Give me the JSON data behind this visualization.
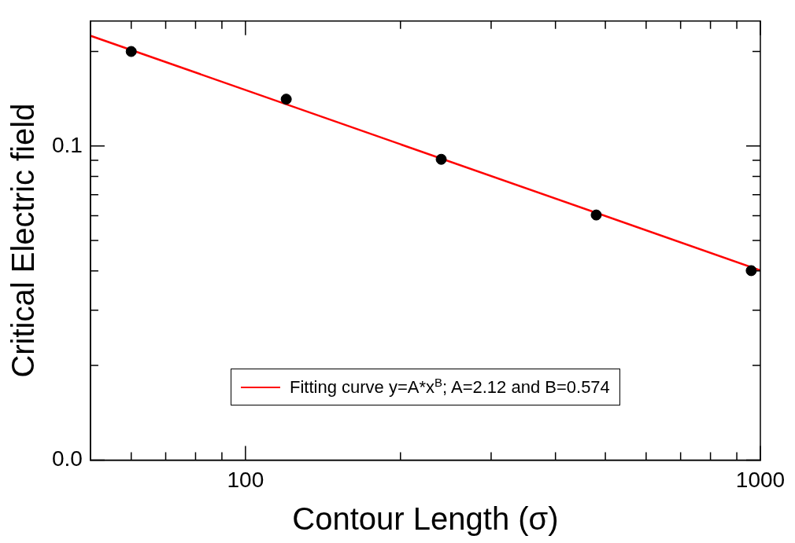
{
  "chart_data": {
    "type": "scatter",
    "xlabel": "Contour Length (σ)",
    "ylabel": "Critical Electric field",
    "x": [
      60,
      120,
      240,
      480,
      960
    ],
    "series": [
      {
        "color": "#000000",
        "values": [
          0.2,
          0.141,
          0.0907,
          0.0603,
          0.0401
        ]
      },
      {
        "type": "line",
        "name": "Fitting curve y=A*x$^{B}$; A=2.12 and B=0.574",
        "color": "#ff0000",
        "x": [
          50,
          1000
        ],
        "values": [
          0.2245,
          0.0402
        ],
        "marker": "none"
      }
    ],
    "log": "xy",
    "xlim": [
      50,
      1000
    ],
    "ylim": [
      0.01,
      0.25
    ],
    "xticks": [
      {
        "value": 60,
        "label": null
      },
      {
        "value": 70,
        "label": null
      },
      {
        "value": 80,
        "label": null
      },
      {
        "value": 90,
        "label": null
      },
      100,
      {
        "value": 200,
        "label": null
      },
      {
        "value": 300,
        "label": null
      },
      {
        "value": 400,
        "label": null
      },
      {
        "value": 500,
        "label": null
      },
      {
        "value": 600,
        "label": null
      },
      {
        "value": 700,
        "label": null
      },
      {
        "value": 800,
        "label": null
      },
      {
        "value": 900,
        "label": null
      },
      1000
    ],
    "yticks": [
      {
        "value": 0.01,
        "label": "0.0"
      },
      {
        "value": 0.02,
        "label": null
      },
      {
        "value": 0.03,
        "label": null
      },
      {
        "value": 0.04,
        "label": null
      },
      {
        "value": 0.05,
        "label": null
      },
      {
        "value": 0.06,
        "label": null
      },
      {
        "value": 0.07,
        "label": null
      },
      {
        "value": 0.08,
        "label": null
      },
      {
        "value": 0.09,
        "label": null
      },
      0.1,
      {
        "value": 0.2,
        "label": null
      }
    ],
    "marker": "circle",
    "grid": false,
    "legend": "bottom"
  }
}
